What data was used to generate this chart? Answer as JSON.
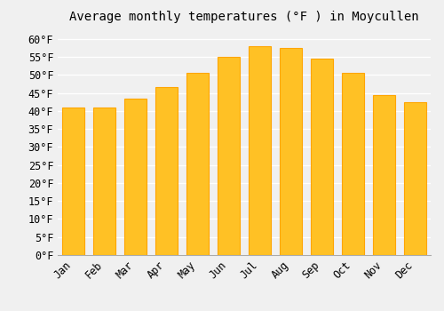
{
  "title": "Average monthly temperatures (°F ) in Moycullen",
  "months": [
    "Jan",
    "Feb",
    "Mar",
    "Apr",
    "May",
    "Jun",
    "Jul",
    "Aug",
    "Sep",
    "Oct",
    "Nov",
    "Dec"
  ],
  "values": [
    41,
    41,
    43.5,
    46.5,
    50.5,
    55,
    58,
    57.5,
    54.5,
    50.5,
    44.5,
    42.5
  ],
  "bar_color_main": "#FFC125",
  "bar_color_edge": "#FFA500",
  "ylim": [
    0,
    63
  ],
  "yticks": [
    0,
    5,
    10,
    15,
    20,
    25,
    30,
    35,
    40,
    45,
    50,
    55,
    60
  ],
  "background_color": "#f0f0f0",
  "grid_color": "#ffffff",
  "title_fontsize": 10,
  "tick_fontsize": 8.5
}
